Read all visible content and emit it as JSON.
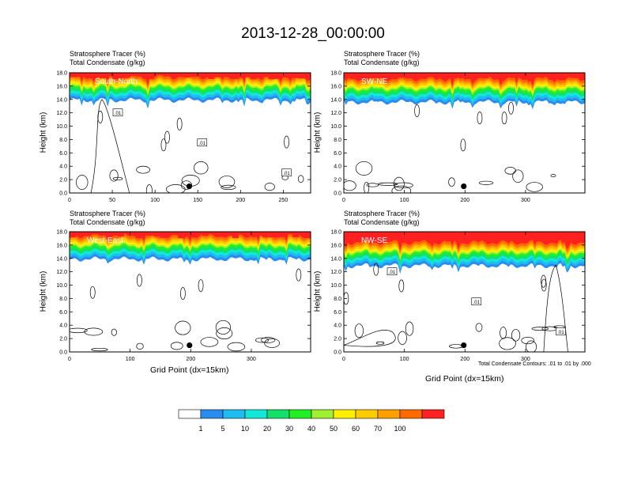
{
  "title": "2013-12-28_00:00:00",
  "colorbar": {
    "colors": [
      "#ffffff",
      "#2b8cf0",
      "#1fbcf2",
      "#12e8d8",
      "#12e06a",
      "#22f022",
      "#a0f032",
      "#fff000",
      "#ffcc00",
      "#ff9f00",
      "#ff6a00",
      "#ff2020"
    ],
    "labels": [
      "1",
      "5",
      "10",
      "20",
      "30",
      "40",
      "50",
      "60",
      "70",
      "100"
    ]
  },
  "chart_data": [
    {
      "type": "contour",
      "title_left_line1": "Stratosphere Tracer   (%)",
      "title_left_line2": "Total Condensate   (g/kg)",
      "section_label": "South-North",
      "ylabel": "Height (km)",
      "xlabel": "",
      "xlim": [
        0,
        282
      ],
      "ylim": [
        0,
        18
      ],
      "xticks": [
        "0",
        "50",
        "100",
        "150",
        "200",
        "250"
      ],
      "yticks": [
        "0.0",
        "2.0",
        "4.0",
        "6.0",
        "8.0",
        "10.0",
        "12.0",
        "14.0",
        "16.0",
        "18.0"
      ],
      "tropopause_km": 15.5,
      "marker": {
        "x": 140,
        "y": 1.0
      },
      "contour_labels": [
        ".01",
        ".01",
        ".01"
      ]
    },
    {
      "type": "contour",
      "title_left_line1": "Stratosphere Tracer   (%)",
      "title_left_line2": "Total Condensate   (g/kg)",
      "section_label": "SW-NE",
      "ylabel": "Height (km)",
      "xlabel": "",
      "xlim": [
        0,
        398
      ],
      "ylim": [
        0,
        18
      ],
      "xticks": [
        "0",
        "100",
        "200",
        "300"
      ],
      "yticks": [
        "0.0",
        "2.0",
        "4.0",
        "6.0",
        "8.0",
        "10.0",
        "12.0",
        "14.0",
        "16.0",
        "18.0"
      ],
      "tropopause_km": 15.2,
      "marker": {
        "x": 198,
        "y": 1.0
      },
      "contour_labels": []
    },
    {
      "type": "contour",
      "title_left_line1": "Stratosphere Tracer   (%)",
      "title_left_line2": "Total Condensate   (g/kg)",
      "section_label": "West-East",
      "ylabel": "Height (km)",
      "xlabel": "Grid Point (dx=15km)",
      "xlim": [
        0,
        398
      ],
      "ylim": [
        0,
        18
      ],
      "xticks": [
        "0",
        "100",
        "200",
        "300"
      ],
      "yticks": [
        "0.0",
        "2.0",
        "4.0",
        "6.0",
        "8.0",
        "10.0",
        "12.0",
        "14.0",
        "16.0",
        "18.0"
      ],
      "tropopause_km": 15.5,
      "marker": {
        "x": 198,
        "y": 1.0
      },
      "contour_labels": []
    },
    {
      "type": "contour",
      "title_left_line1": "Stratosphere Tracer   (%)",
      "title_left_line2": "Total Condensate   (g/kg)",
      "section_label": "NW-SE",
      "ylabel": "Height (km)",
      "xlabel": "Grid Point (dx=15km)",
      "xlim": [
        0,
        398
      ],
      "ylim": [
        0,
        18
      ],
      "xticks": [
        "0",
        "100",
        "200",
        "300"
      ],
      "yticks": [
        "0.0",
        "2.0",
        "4.0",
        "6.0",
        "8.0",
        "10.0",
        "12.0",
        "14.0",
        "16.0",
        "18.0"
      ],
      "tropopause_km": 14.5,
      "marker": {
        "x": 198,
        "y": 1.0
      },
      "contour_labels": [
        ".01",
        ".01",
        ".01"
      ],
      "footnote": "Total Condensate Contours: .01 to .01 by .000"
    }
  ]
}
